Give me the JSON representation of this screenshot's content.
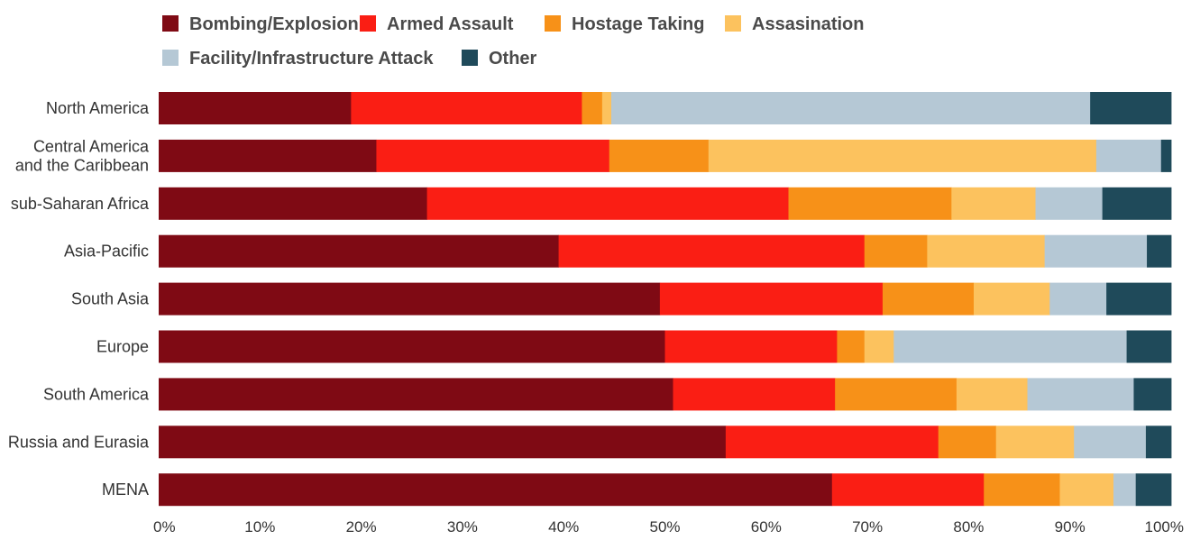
{
  "chart_data": {
    "type": "bar",
    "orientation": "horizontal",
    "stacked": true,
    "title": "",
    "xlabel": "",
    "ylabel": "",
    "xlim": [
      0,
      100
    ],
    "grid": false,
    "legend_position": "top-left",
    "categories": [
      "North America",
      "Central America and the Caribbean",
      "sub-Saharan Africa",
      "Asia-Pacific",
      "South Asia",
      "Europe",
      "South America",
      "Russia and Eurasia",
      "MENA"
    ],
    "category_label_lines": [
      [
        "North America"
      ],
      [
        "Central America",
        "and the Caribbean"
      ],
      [
        "sub-Saharan Africa"
      ],
      [
        "Asia-Pacific"
      ],
      [
        "South Asia"
      ],
      [
        "Europe"
      ],
      [
        "South America"
      ],
      [
        "Russia and Eurasia"
      ],
      [
        "MENA"
      ]
    ],
    "x_ticks": [
      0,
      10,
      20,
      30,
      40,
      50,
      60,
      70,
      80,
      90,
      100
    ],
    "x_tick_labels": [
      "0%",
      "10%",
      "20%",
      "30%",
      "40%",
      "50%",
      "60%",
      "70%",
      "80%",
      "90%",
      "100%"
    ],
    "series": [
      {
        "name": "Bombing/Explosion",
        "color": "#7f0a14",
        "values": [
          19.0,
          21.5,
          26.5,
          39.5,
          49.5,
          50.0,
          50.8,
          56.0,
          66.5
        ]
      },
      {
        "name": "Armed Assault",
        "color": "#fa1e14",
        "values": [
          22.8,
          23.0,
          35.7,
          30.2,
          22.0,
          17.0,
          16.0,
          21.0,
          15.0
        ]
      },
      {
        "name": "Hostage Taking",
        "color": "#f79118",
        "values": [
          2.0,
          9.8,
          16.1,
          6.2,
          9.0,
          2.7,
          12.0,
          5.7,
          7.5
        ]
      },
      {
        "name": "Assasination",
        "color": "#fcc25e",
        "values": [
          0.9,
          38.3,
          8.3,
          11.6,
          7.5,
          2.9,
          7.0,
          7.7,
          5.3
        ]
      },
      {
        "name": "Facility/Infrastructure Attack",
        "color": "#b5c8d5",
        "values": [
          47.3,
          6.4,
          6.6,
          10.1,
          5.6,
          23.0,
          10.5,
          7.1,
          2.2
        ]
      },
      {
        "name": "Other",
        "color": "#1f4a5a",
        "values": [
          8.0,
          1.0,
          6.8,
          2.4,
          6.4,
          4.4,
          3.7,
          2.5,
          3.5
        ]
      }
    ]
  }
}
